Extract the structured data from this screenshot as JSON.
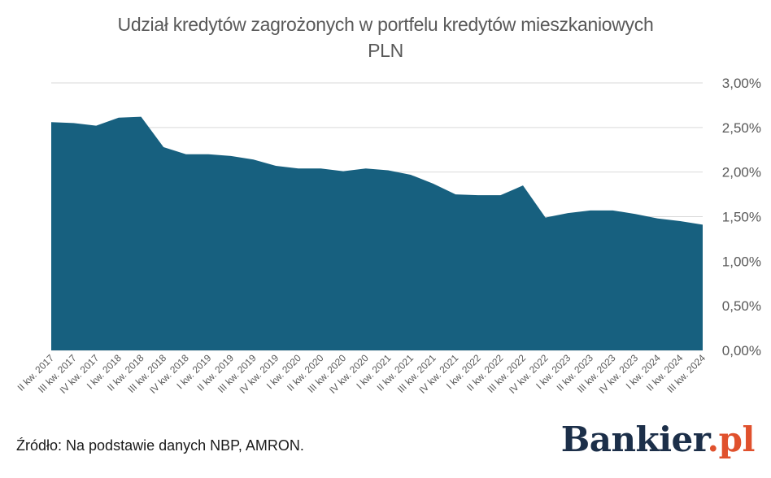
{
  "chart_data": {
    "type": "area",
    "title": "Udział kredytów zagrożonych w portfelu kredytów mieszkaniowych",
    "subtitle": "PLN",
    "xlabel": "",
    "ylabel": "",
    "ylim": [
      0,
      3
    ],
    "y_ticks": [
      0,
      0.5,
      1.0,
      1.5,
      2.0,
      2.5,
      3.0
    ],
    "y_tick_labels": [
      "0,00%",
      "0,50%",
      "1,00%",
      "1,50%",
      "2,00%",
      "2,50%",
      "3,00%"
    ],
    "grid": true,
    "legend": "none",
    "color": "#17607f",
    "categories": [
      "II kw. 2017",
      "III kw. 2017",
      "IV kw. 2017",
      "I kw. 2018",
      "II kw. 2018",
      "III kw. 2018",
      "IV kw. 2018",
      "I kw. 2019",
      "II kw. 2019",
      "III kw. 2019",
      "IV kw. 2019",
      "I kw. 2020",
      "II kw. 2020",
      "III kw. 2020",
      "IV kw. 2020",
      "I kw. 2021",
      "II kw. 2021",
      "III kw. 2021",
      "IV kw. 2021",
      "I kw. 2022",
      "II kw. 2022",
      "III kw. 2022",
      "IV kw. 2022",
      "I kw. 2023",
      "II kw. 2023",
      "III kw. 2023",
      "IV kw. 2023",
      "I kw. 2024",
      "II kw. 2024",
      "III kw. 2024"
    ],
    "values": [
      2.56,
      2.55,
      2.52,
      2.61,
      2.62,
      2.28,
      2.2,
      2.2,
      2.18,
      2.14,
      2.07,
      2.04,
      2.04,
      2.01,
      2.04,
      2.02,
      1.97,
      1.87,
      1.75,
      1.74,
      1.74,
      1.85,
      1.49,
      1.54,
      1.57,
      1.57,
      1.53,
      1.48,
      1.45,
      1.41
    ]
  },
  "source_note": "Źródło: Na podstawie danych NBP, AMRON.",
  "brand": {
    "name": "Bankier",
    "suffix": ".pl"
  }
}
